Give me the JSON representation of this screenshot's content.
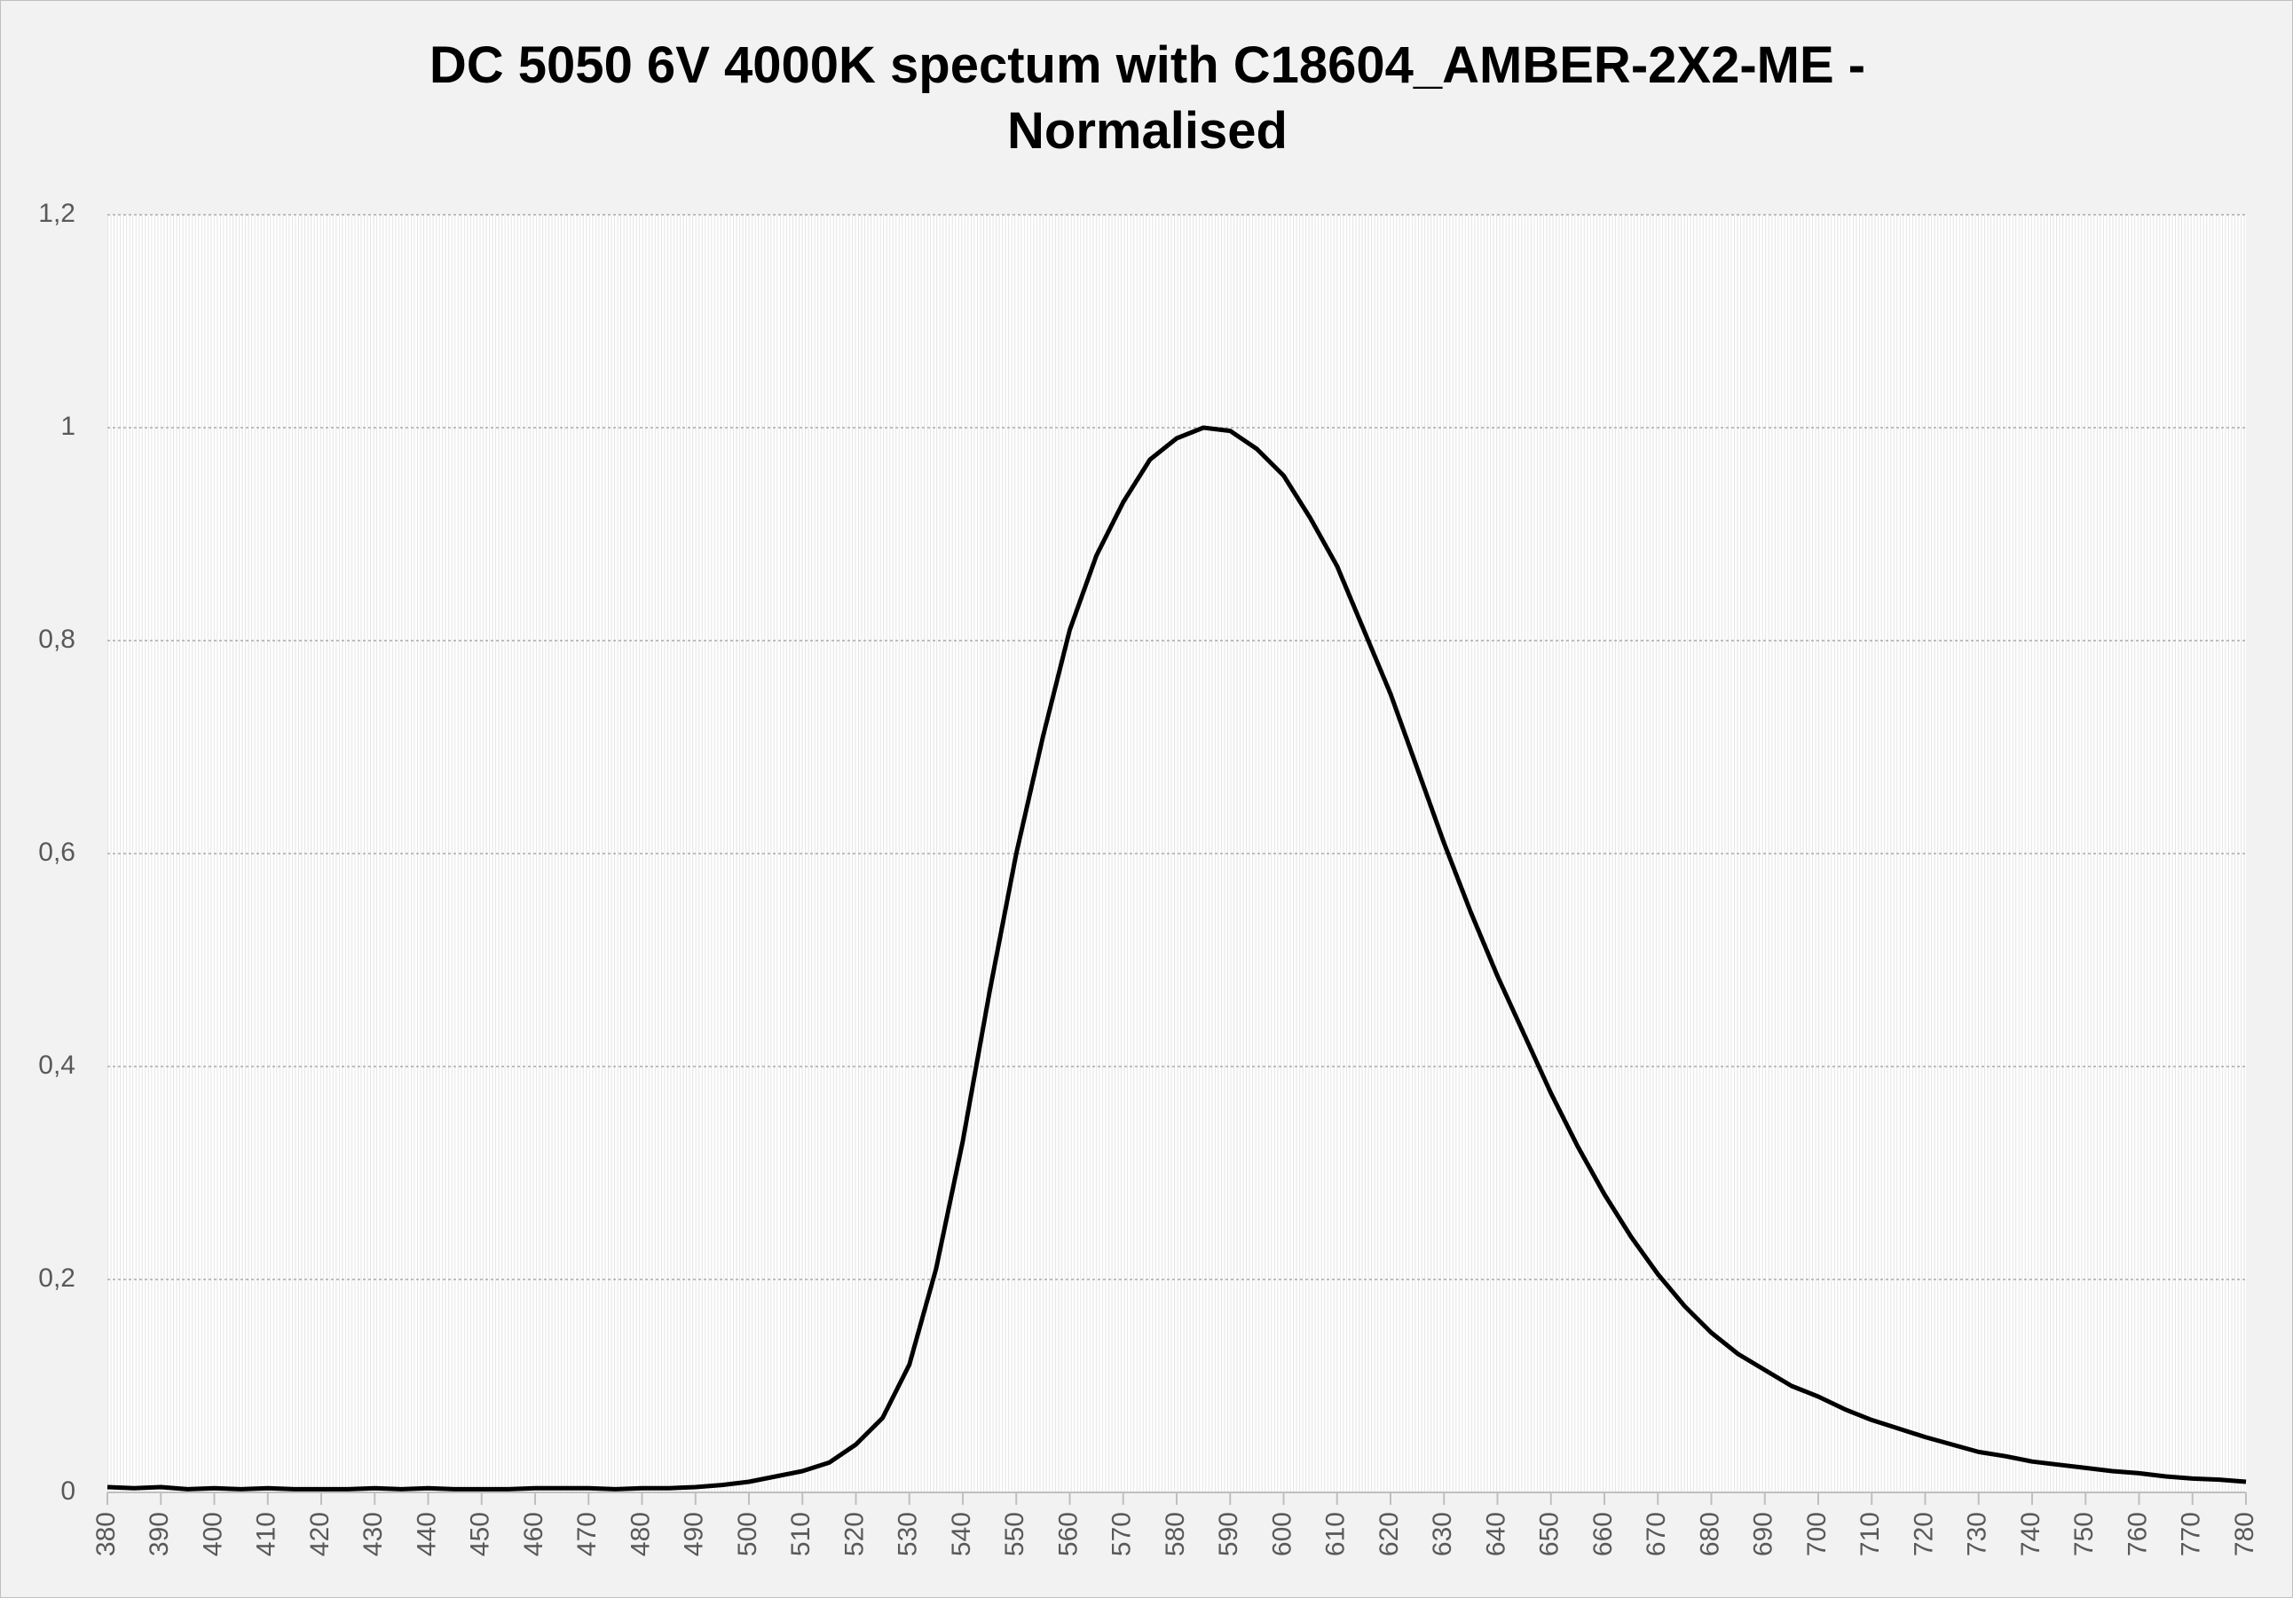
{
  "chart_data": {
    "type": "line",
    "title": "DC 5050 6V 4000K spectum with C18604_AMBER-2X2-ME - Normalised",
    "x": [
      380,
      385,
      390,
      395,
      400,
      405,
      410,
      415,
      420,
      425,
      430,
      435,
      440,
      445,
      450,
      455,
      460,
      465,
      470,
      475,
      480,
      485,
      490,
      495,
      500,
      505,
      510,
      515,
      520,
      525,
      530,
      535,
      540,
      545,
      550,
      555,
      560,
      565,
      570,
      575,
      580,
      585,
      590,
      595,
      600,
      605,
      610,
      615,
      620,
      625,
      630,
      635,
      640,
      645,
      650,
      655,
      660,
      665,
      670,
      675,
      680,
      685,
      690,
      695,
      700,
      705,
      710,
      715,
      720,
      725,
      730,
      735,
      740,
      745,
      750,
      755,
      760,
      765,
      770,
      775,
      780
    ],
    "series": [
      {
        "name": "Normalised",
        "color": "#000000",
        "values": [
          0.005,
          0.004,
          0.005,
          0.003,
          0.004,
          0.003,
          0.004,
          0.003,
          0.003,
          0.003,
          0.004,
          0.003,
          0.004,
          0.003,
          0.003,
          0.003,
          0.004,
          0.004,
          0.004,
          0.003,
          0.004,
          0.004,
          0.005,
          0.007,
          0.01,
          0.015,
          0.02,
          0.028,
          0.045,
          0.07,
          0.12,
          0.21,
          0.33,
          0.47,
          0.6,
          0.71,
          0.81,
          0.88,
          0.93,
          0.97,
          0.99,
          1.0,
          0.997,
          0.98,
          0.955,
          0.915,
          0.87,
          0.81,
          0.75,
          0.68,
          0.61,
          0.545,
          0.485,
          0.43,
          0.375,
          0.325,
          0.28,
          0.24,
          0.205,
          0.175,
          0.15,
          0.13,
          0.115,
          0.1,
          0.09,
          0.078,
          0.068,
          0.06,
          0.052,
          0.045,
          0.038,
          0.034,
          0.029,
          0.026,
          0.023,
          0.02,
          0.018,
          0.015,
          0.013,
          0.012,
          0.01
        ]
      }
    ],
    "xlim": [
      380,
      780
    ],
    "xticks": [
      380,
      390,
      400,
      410,
      420,
      430,
      440,
      450,
      460,
      470,
      480,
      490,
      500,
      510,
      520,
      530,
      540,
      550,
      560,
      570,
      580,
      590,
      600,
      610,
      620,
      630,
      640,
      650,
      660,
      670,
      680,
      690,
      700,
      710,
      720,
      730,
      740,
      750,
      760,
      770,
      780
    ],
    "ylim": [
      0,
      1.2
    ],
    "yticks": [
      0,
      {
        "value": 0.2,
        "label": "0,2"
      },
      {
        "value": 0.4,
        "label": "0,4"
      },
      {
        "value": 0.6,
        "label": "0,6"
      },
      {
        "value": 0.8,
        "label": "0,8"
      },
      1,
      {
        "value": 1.2,
        "label": "1,2"
      }
    ],
    "grid": true
  }
}
